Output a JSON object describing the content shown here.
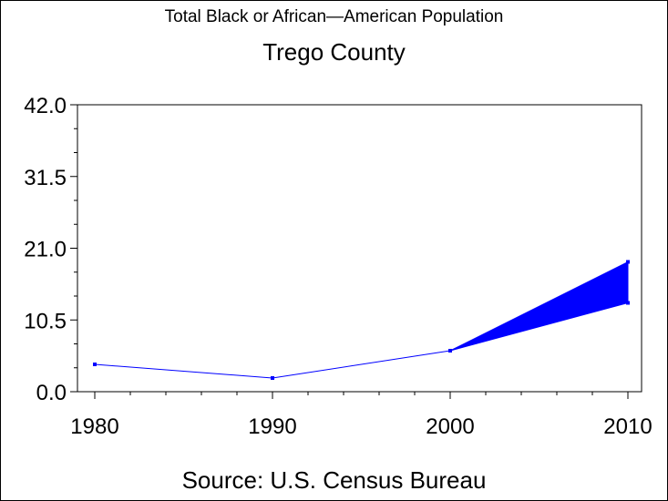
{
  "chart_data": {
    "type": "line",
    "title": "Total Black or African—American Population",
    "subtitle": "Trego County",
    "source": "Source: U.S. Census Bureau",
    "xlabel": "",
    "ylabel": "",
    "x": [
      1980,
      1990,
      2000,
      2010
    ],
    "x_tick_labels": [
      "1980",
      "1990",
      "2000",
      "2010"
    ],
    "y_tick_labels": [
      "0.0",
      "10.5",
      "21.0",
      "31.5",
      "42.0"
    ],
    "y_ticks": [
      0,
      10.5,
      21,
      31.5,
      42
    ],
    "xlim": [
      1980,
      2010
    ],
    "ylim": [
      0,
      42
    ],
    "grid": false,
    "legend": "none",
    "series": [
      {
        "values": [
          4,
          2,
          6,
          null
        ],
        "color": "#0000ff"
      }
    ],
    "range_band": {
      "x": [
        2000,
        2010
      ],
      "lower": [
        6,
        13
      ],
      "upper": [
        6,
        19
      ],
      "color": "#0000ff"
    }
  }
}
